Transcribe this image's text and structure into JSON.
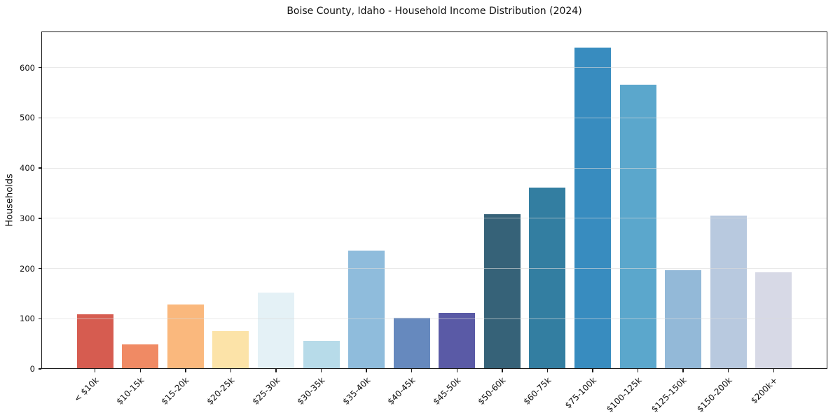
{
  "chart_data": {
    "type": "bar",
    "title": "Boise County, Idaho - Household Income Distribution (2024)",
    "xlabel": "",
    "ylabel": "Households",
    "categories": [
      "< $10k",
      "$10-15k",
      "$15-20k",
      "$20-25k",
      "$25-30k",
      "$30-35k",
      "$35-40k",
      "$40-45k",
      "$45-50k",
      "$50-60k",
      "$60-75k",
      "$75-100k",
      "$100-125k",
      "$125-150k",
      "$150-200k",
      "$200k+"
    ],
    "values": [
      109,
      49,
      128,
      75,
      152,
      56,
      236,
      102,
      112,
      308,
      361,
      640,
      566,
      196,
      306,
      193
    ],
    "bar_colors": [
      "#d65c50",
      "#f08a64",
      "#fab87d",
      "#fce3a8",
      "#e4f1f6",
      "#b7dbe9",
      "#8fbcdc",
      "#6689be",
      "#5a5aa6",
      "#366278",
      "#337ea1",
      "#388cbf",
      "#5ba7cc",
      "#93b9d8",
      "#b8c9df",
      "#d7d9e6"
    ],
    "yticks": [
      0,
      100,
      200,
      300,
      400,
      500,
      600
    ],
    "ylim": [
      0,
      672
    ],
    "grid": "horizontal",
    "legend": "none",
    "background_color": "#ffffff",
    "axis_color": "#1a1a1a",
    "grid_color": "#e6e6e6"
  }
}
